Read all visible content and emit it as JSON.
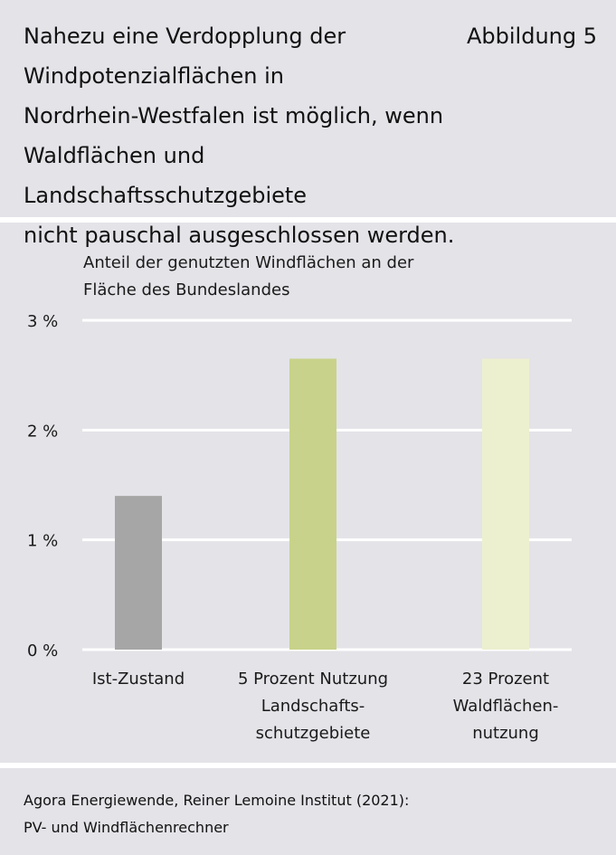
{
  "header": {
    "title": "Nahezu eine Verdopplung der Windpotenzialflächen in Nordrhein-Westfalen ist möglich, wenn Waldflächen und Landschaftsschutzgebiete nicht pauschal ausgeschlossen werden.",
    "title_lines": [
      "Nahezu eine Verdopplung der",
      "Windpotenzialflächen in",
      "Nordrhein-Westfalen ist möglich, wenn",
      "Waldflächen und Landschaftsschutzgebiete",
      "nicht pauschal ausgeschlossen werden."
    ],
    "figure_label": "Abbildung 5"
  },
  "chart_data": {
    "type": "bar",
    "title": "Anteil der genutzten Windflächen an der Fläche des Bundeslandes",
    "title_lines": [
      "Anteil der genutzten Windflächen an der",
      "Fläche des Bundeslandes"
    ],
    "categories": [
      "Ist-Zustand",
      "5 Prozent Nutzung Landschaftsschutzgebiete",
      "23 Prozent Waldflächennutzung"
    ],
    "category_label_lines": [
      [
        "Ist-Zustand"
      ],
      [
        "5 Prozent Nutzung",
        "Landschafts-",
        "schutzgebiete"
      ],
      [
        "23 Prozent",
        "Waldflächen-",
        "nutzung"
      ]
    ],
    "values": [
      1.4,
      2.65,
      2.65
    ],
    "unit": "%",
    "ylim": [
      0,
      3
    ],
    "yticks": [
      0,
      1,
      2,
      3
    ],
    "ytick_labels": [
      "0 %",
      "1 %",
      "2 %",
      "3 %"
    ],
    "grid": true,
    "colors": [
      "#a6a6a6",
      "#c9d28a",
      "#edf0cf"
    ],
    "gridline_color": "#ffffff",
    "xlabel": "",
    "ylabel": ""
  },
  "footer": {
    "source_lines": [
      "Agora Energiewende, Reiner Lemoine Institut (2021):",
      "PV- und Windflächenrechner"
    ]
  }
}
